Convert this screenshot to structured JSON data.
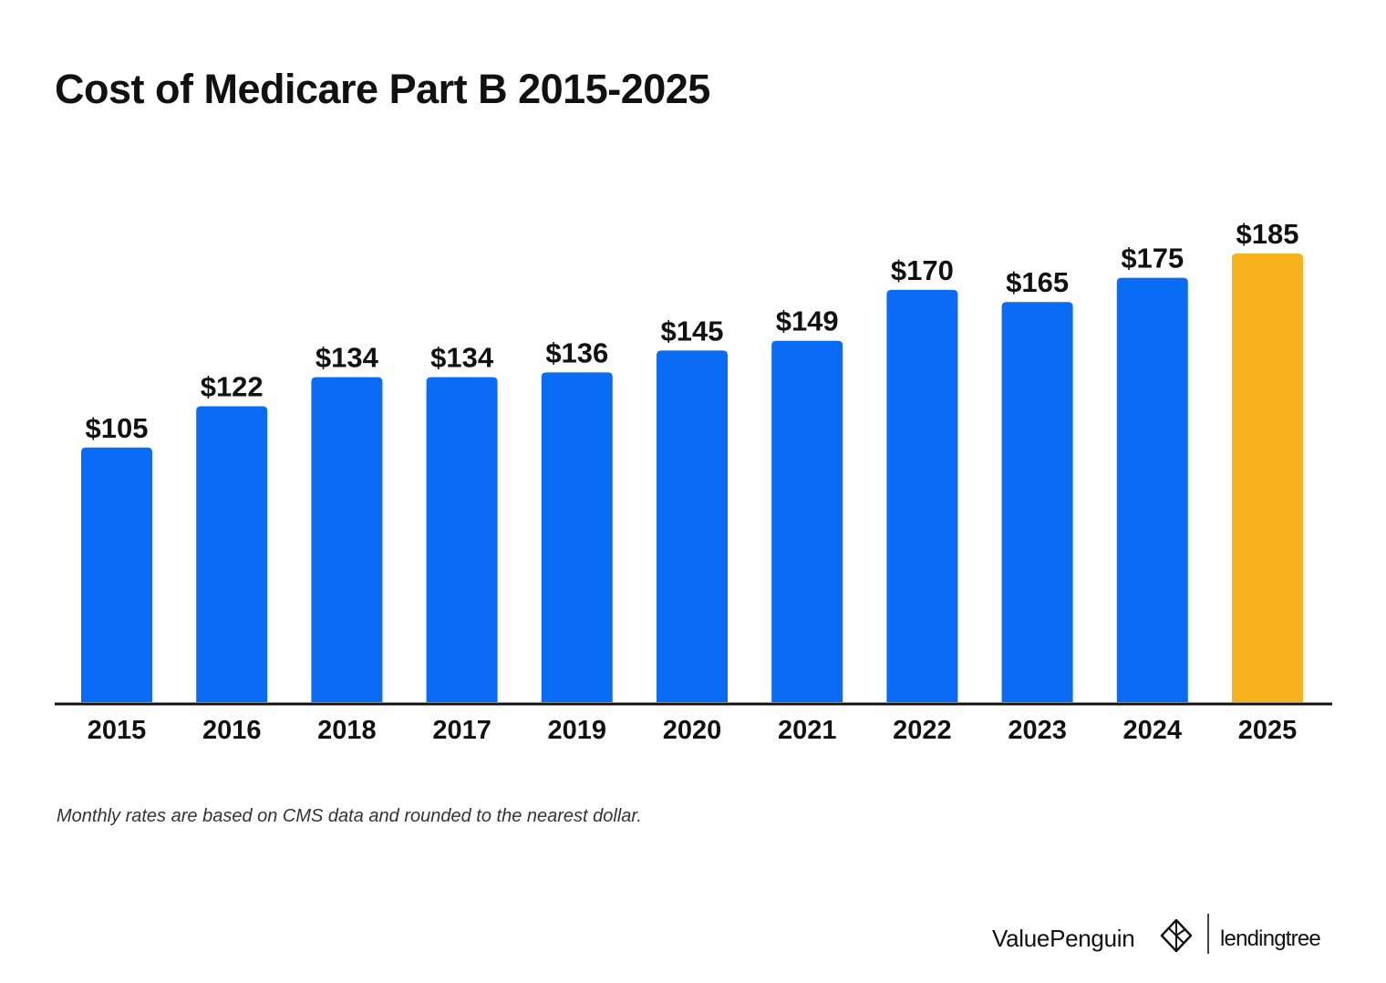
{
  "chart_data": {
    "type": "bar",
    "title": "Cost of Medicare Part B 2015-2025",
    "categories": [
      "2015",
      "2016",
      "2018",
      "2017",
      "2019",
      "2020",
      "2021",
      "2022",
      "2023",
      "2024",
      "2025"
    ],
    "values": [
      105,
      122,
      134,
      134,
      136,
      145,
      149,
      170,
      165,
      175,
      185
    ],
    "value_labels": [
      "$105",
      "$122",
      "$134",
      "$134",
      "$136",
      "$145",
      "$149",
      "$170",
      "$165",
      "$175",
      "$185"
    ],
    "xlabel": "",
    "ylabel": "",
    "ylim": [
      0,
      185
    ],
    "grid": false,
    "legend": "none",
    "colors": {
      "bar": "#0a6cf5",
      "highlight": "#f7b21e",
      "axis": "#111111"
    },
    "highlight_index": 10
  },
  "footnote": "Monthly rates are based on CMS data and rounded to the nearest dollar.",
  "branding": {
    "valuepenguin": "ValuePenguin",
    "valuepenguin_icon": "penguin-logo-icon",
    "lendingtree": "lendingtree"
  }
}
